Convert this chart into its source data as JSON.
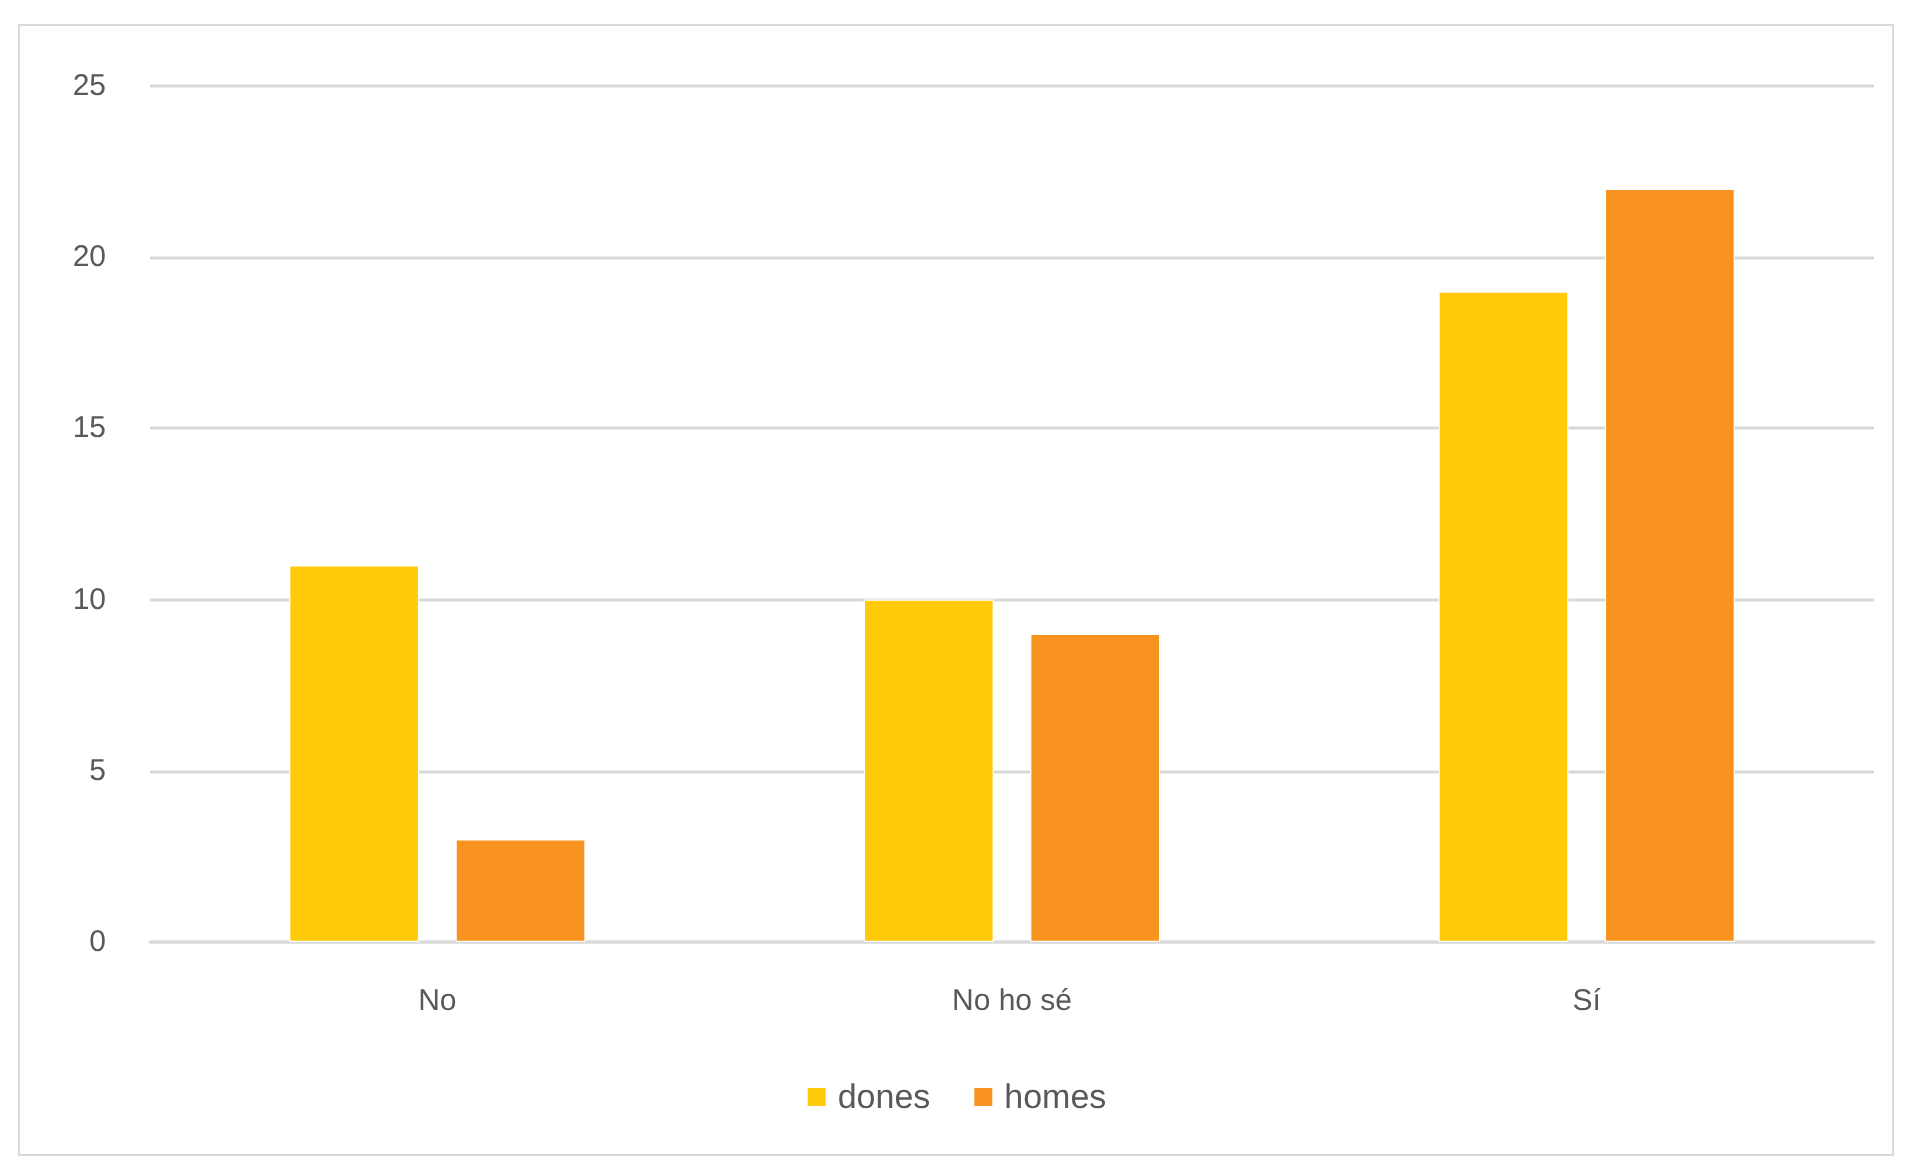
{
  "chart_data": {
    "type": "bar",
    "categories": [
      "No",
      "No ho sé",
      "Sí"
    ],
    "series": [
      {
        "name": "dones",
        "color": "#ffca0a",
        "values": [
          11,
          10,
          19
        ]
      },
      {
        "name": "homes",
        "color": "#f7931e",
        "values": [
          3,
          9,
          22
        ]
      }
    ],
    "ylim": [
      0,
      25
    ],
    "yticks": [
      0,
      5,
      10,
      15,
      20,
      25
    ],
    "grid": "y",
    "legend": "bottom"
  }
}
